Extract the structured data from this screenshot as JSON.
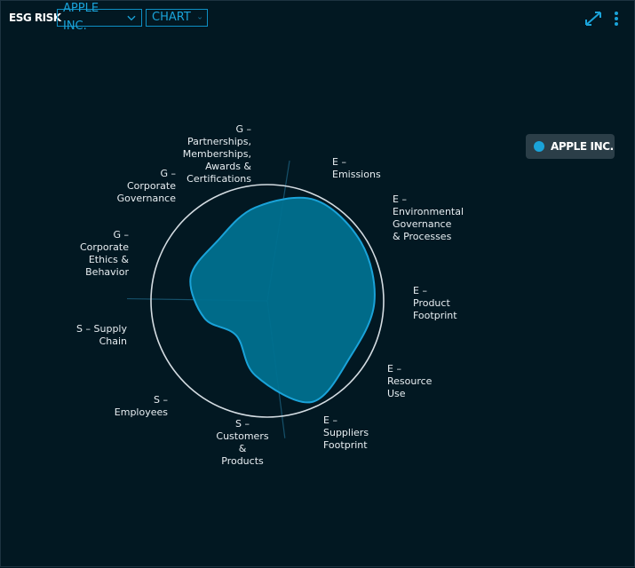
{
  "header": {
    "title": "ESG RISK",
    "company_select": "APPLE INC.",
    "view_select": "CHART"
  },
  "icons": {
    "expand": "expand-arrows-icon",
    "menu": "vertical-ellipsis-icon"
  },
  "colors": {
    "accent": "#1aa3d9",
    "fill": "#00708f",
    "background": "#021822"
  },
  "chart_data": {
    "type": "radar",
    "title": "",
    "categories": [
      "E –\nEmissions",
      "E –\nEnvironmental\nGovernance\n& Processes",
      "E –\nProduct\nFootprint",
      "E –\nResource\nUse",
      "E –\nSuppliers\nFootprint",
      "S –\nCustomers\n&\nProducts",
      "S –\nEmployees",
      "S – Supply\nChain",
      "G –\nCorporate\nEthics &\nBehavior",
      "G –\nCorporate\nGovernance",
      "G –\nPartnerships,\nMemberships,\nAwards &\nCertifications"
    ],
    "series": [
      {
        "name": "APPLE INC.",
        "values": [
          0.96,
          0.95,
          0.92,
          0.86,
          0.95,
          0.65,
          0.4,
          0.56,
          0.69,
          0.67,
          0.81
        ]
      }
    ],
    "range": [
      0,
      1
    ],
    "legend": "top-right",
    "grid": false
  }
}
